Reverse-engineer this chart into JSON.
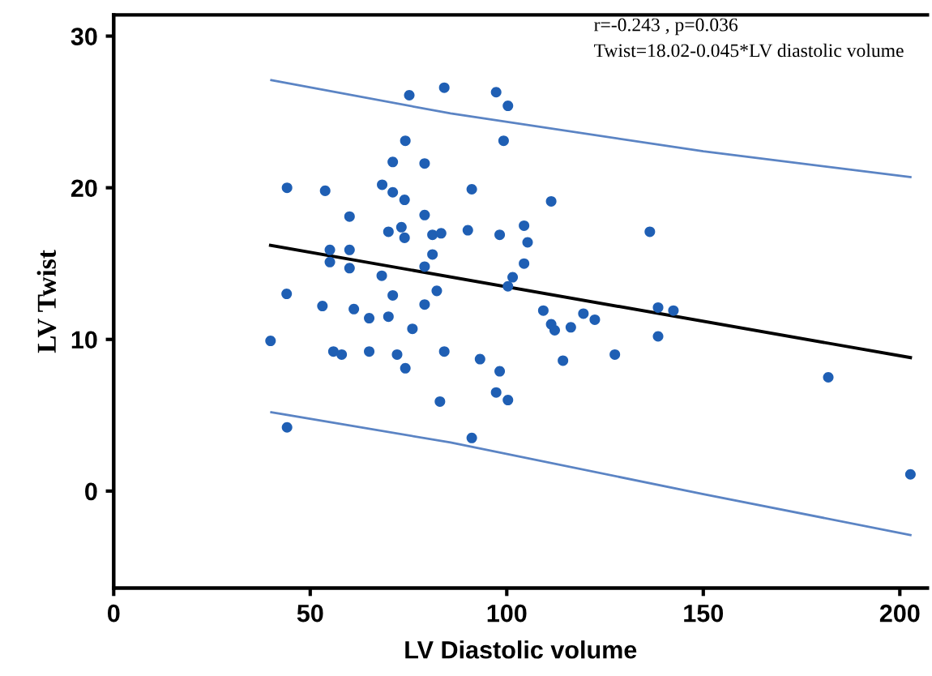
{
  "chart_data": {
    "type": "scatter",
    "xlabel": "LV Diastolic volume",
    "ylabel": "LV Twist",
    "annotations": [
      "r=-0.243 , p=0.036",
      "Twist=18.02-0.045*LV diastolic volume"
    ],
    "xlim": [
      0,
      207
    ],
    "ylim": [
      -6.4,
      31.4
    ],
    "xticks": [
      0,
      50,
      100,
      150,
      200
    ],
    "yticks": [
      0,
      10,
      20,
      30
    ],
    "grid": false,
    "legend": false,
    "series": [
      {
        "marker": "circle",
        "color": "#1f5fb4",
        "x": [
          44.1,
          53.8,
          75.2,
          84.1,
          74.2,
          71.0,
          79.1,
          68.3,
          71.0,
          74.0,
          91.1,
          60.0,
          79.1,
          69.9,
          73.2,
          74.0,
          81.1,
          83.3,
          90.1,
          55.0,
          55.0,
          60.0,
          60.0,
          68.2,
          81.1,
          79.1,
          44.0,
          53.1,
          61.1,
          65.0,
          69.9,
          71.0,
          79.1,
          82.2,
          76.0,
          39.9,
          55.9,
          58.0,
          65.0,
          72.1,
          74.2,
          84.1,
          83.0,
          44.1,
          91.1,
          93.2,
          97.3,
          100.3,
          99.2,
          111.3,
          98.2,
          104.4,
          105.3,
          104.4,
          101.5,
          100.3,
          136.4,
          109.3,
          111.3,
          112.2,
          116.3,
          119.5,
          122.4,
          138.5,
          142.4,
          138.5,
          98.2,
          97.3,
          100.3,
          114.3,
          127.5,
          181.8,
          202.7
        ],
        "values": [
          20.0,
          19.8,
          26.1,
          26.6,
          23.1,
          21.7,
          21.6,
          20.2,
          19.7,
          19.2,
          19.9,
          18.1,
          18.2,
          17.1,
          17.4,
          16.7,
          16.9,
          17.0,
          17.2,
          15.9,
          15.1,
          15.9,
          14.7,
          14.2,
          15.6,
          14.8,
          13.0,
          12.2,
          12.0,
          11.4,
          11.5,
          12.9,
          12.3,
          13.2,
          10.7,
          9.9,
          9.2,
          9.0,
          9.2,
          9.0,
          8.1,
          9.2,
          5.9,
          4.2,
          3.5,
          8.7,
          26.3,
          25.4,
          23.1,
          19.1,
          16.9,
          17.5,
          16.4,
          15.0,
          14.1,
          13.5,
          17.1,
          11.9,
          11.0,
          10.6,
          10.8,
          11.7,
          11.3,
          12.1,
          11.9,
          10.2,
          7.9,
          6.5,
          6.0,
          8.6,
          9.0,
          7.5,
          1.1
        ]
      },
      {
        "type": "line",
        "color": "#000000",
        "x": [
          39.9,
          202.7
        ],
        "values": [
          16.2,
          8.8
        ]
      },
      {
        "type": "line",
        "color": "#5b84c4",
        "x": [
          40.1,
          85.7,
          150,
          202.7
        ],
        "values": [
          27.1,
          24.9,
          22.4,
          20.7
        ]
      },
      {
        "type": "line",
        "color": "#5b84c4",
        "x": [
          40.1,
          85.7,
          150,
          202.7
        ],
        "values": [
          5.2,
          3.2,
          -0.2,
          -2.9
        ]
      }
    ]
  }
}
